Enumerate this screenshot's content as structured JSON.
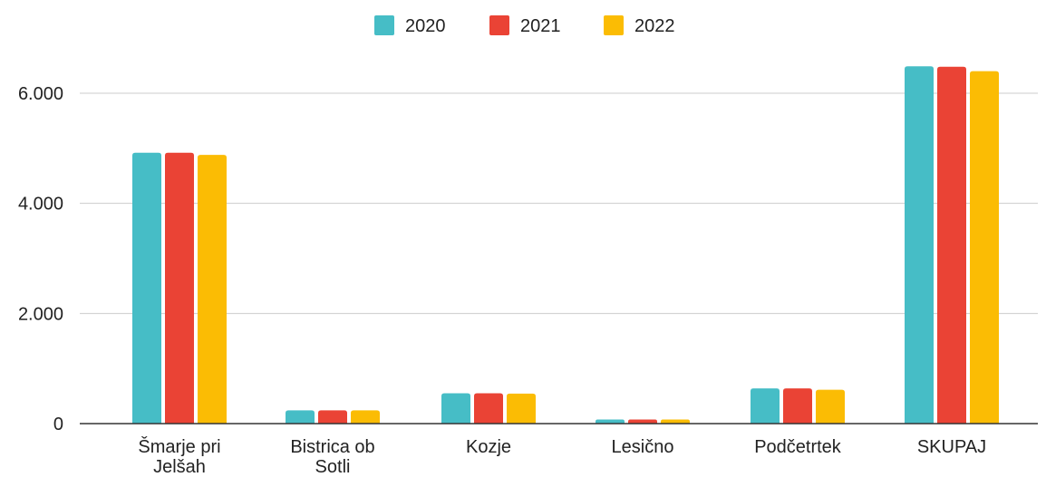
{
  "chart_data": {
    "type": "bar",
    "title": "",
    "xlabel": "",
    "ylabel": "",
    "categories": [
      [
        "Šmarje pri",
        "Jelšah"
      ],
      [
        "Bistrica ob",
        "Sotli"
      ],
      [
        "Kozje"
      ],
      [
        "Lesično"
      ],
      [
        "Podčetrtek"
      ],
      [
        "SKUPAJ"
      ]
    ],
    "series": [
      {
        "name": "2020",
        "color": "#46BDC6",
        "values": [
          4920,
          240,
          550,
          75,
          640,
          6490
        ]
      },
      {
        "name": "2021",
        "color": "#EA4335",
        "values": [
          4920,
          240,
          550,
          75,
          640,
          6480
        ]
      },
      {
        "name": "2022",
        "color": "#FBBC04",
        "values": [
          4880,
          240,
          545,
          75,
          615,
          6400
        ]
      }
    ],
    "ylim": [
      0,
      6000
    ],
    "yticks": [
      {
        "value": 0,
        "label": "0"
      },
      {
        "value": 2000,
        "label": "2.000"
      },
      {
        "value": 4000,
        "label": "4.000"
      },
      {
        "value": 6000,
        "label": "6.000"
      }
    ],
    "grid": true,
    "legend_position": "top-center"
  }
}
